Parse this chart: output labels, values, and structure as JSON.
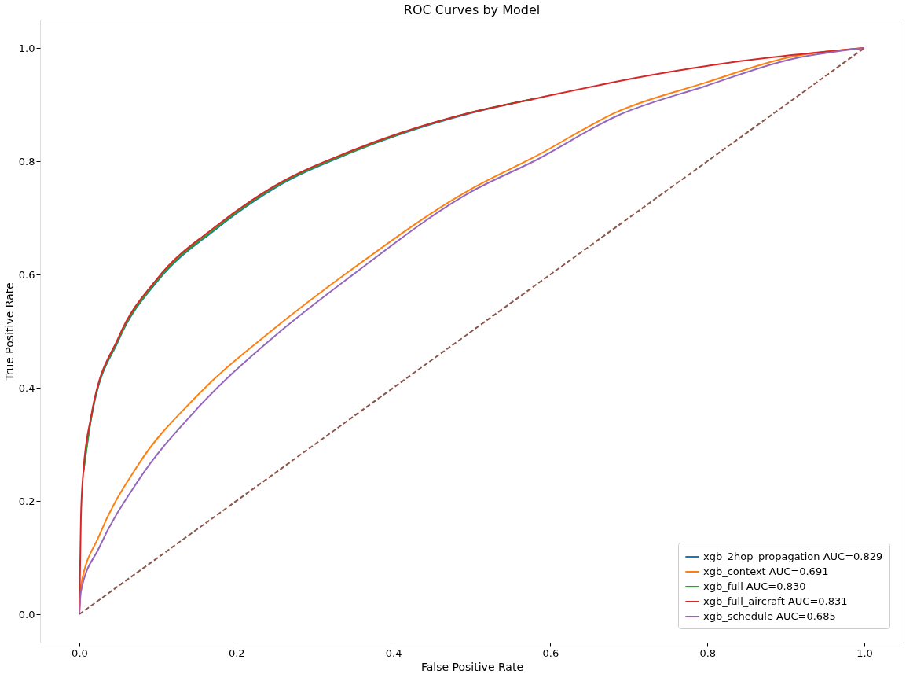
{
  "chart_data": {
    "type": "line",
    "title": "ROC Curves by Model",
    "xlabel": "False Positive Rate",
    "ylabel": "True Positive Rate",
    "xlim": [
      -0.05,
      1.05
    ],
    "ylim": [
      -0.05,
      1.05
    ],
    "xticks": [
      {
        "value": 0,
        "label": "0.0"
      },
      {
        "value": 0.2,
        "label": "0.2"
      },
      {
        "value": 0.4,
        "label": "0.4"
      },
      {
        "value": 0.6,
        "label": "0.6"
      },
      {
        "value": 0.8,
        "label": "0.8"
      },
      {
        "value": 1,
        "label": "1.0"
      }
    ],
    "yticks": [
      {
        "value": 0,
        "label": "0.0"
      },
      {
        "value": 0.2,
        "label": "0.2"
      },
      {
        "value": 0.4,
        "label": "0.4"
      },
      {
        "value": 0.6,
        "label": "0.6"
      },
      {
        "value": 0.8,
        "label": "0.8"
      },
      {
        "value": 1,
        "label": "1.0"
      }
    ],
    "grid": false,
    "legend": "bottom right",
    "marker": "none",
    "series": [
      {
        "name": "xgb_2hop_propagation AUC=0.829",
        "color": "#1f77b4",
        "x": [
          0.005,
          0.015,
          0.05,
          0.1,
          0.173,
          0.247,
          0.346,
          0.499,
          0.579
        ],
        "values": [
          0.25,
          0.345,
          0.484,
          0.589,
          0.679,
          0.751,
          0.815,
          0.885,
          0.91
        ]
      },
      {
        "name": "xgb_context AUC=0.691",
        "color": "#ff7f0e",
        "x": [
          0,
          0.002,
          0.025,
          0.075,
          0.148,
          0.247,
          0.346,
          0.499,
          0.579,
          0.688,
          0.796,
          0.906,
          1
        ],
        "values": [
          0,
          0.05,
          0.138,
          0.264,
          0.383,
          0.503,
          0.608,
          0.751,
          0.807,
          0.889,
          0.938,
          0.984,
          1
        ]
      },
      {
        "name": "xgb_full AUC=0.830",
        "color": "#2ca02c",
        "x": [
          0.005,
          0.015,
          0.05,
          0.1,
          0.173,
          0.247,
          0.346,
          0.499,
          0.579
        ],
        "values": [
          0.25,
          0.347,
          0.486,
          0.591,
          0.681,
          0.753,
          0.816,
          0.886,
          0.91
        ]
      },
      {
        "name": "xgb_full_aircraft AUC=0.831",
        "color": "#d62728",
        "x": [
          0,
          0.002,
          0.005,
          0.015,
          0.05,
          0.1,
          0.173,
          0.247,
          0.346,
          0.499,
          0.579,
          0.72,
          0.833,
          1
        ],
        "values": [
          0,
          0.17,
          0.25,
          0.349,
          0.489,
          0.594,
          0.684,
          0.755,
          0.818,
          0.886,
          0.91,
          0.95,
          0.975,
          1
        ]
      },
      {
        "name": "xgb_schedule AUC=0.685",
        "color": "#9467bd",
        "x": [
          0,
          0.002,
          0.025,
          0.075,
          0.148,
          0.247,
          0.346,
          0.499,
          0.579,
          0.688,
          0.796,
          0.906,
          1
        ],
        "values": [
          0,
          0.04,
          0.117,
          0.236,
          0.36,
          0.489,
          0.597,
          0.746,
          0.8,
          0.882,
          0.932,
          0.98,
          1
        ]
      },
      {
        "color": "#8c564b",
        "line_style": "dashed",
        "x": [
          0,
          1
        ],
        "values": [
          0,
          1
        ]
      }
    ]
  }
}
